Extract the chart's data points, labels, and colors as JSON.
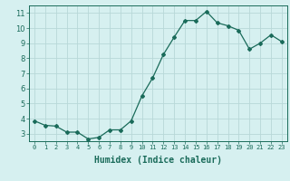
{
  "x": [
    0,
    1,
    2,
    3,
    4,
    5,
    6,
    7,
    8,
    9,
    10,
    11,
    12,
    13,
    14,
    15,
    16,
    17,
    18,
    19,
    20,
    21,
    22,
    23
  ],
  "y": [
    3.85,
    3.55,
    3.5,
    3.1,
    3.1,
    2.65,
    2.75,
    3.25,
    3.25,
    3.85,
    5.5,
    6.7,
    8.25,
    9.4,
    10.5,
    10.5,
    11.1,
    10.35,
    10.15,
    9.85,
    8.6,
    9.0,
    9.55,
    9.1
  ],
  "xlabel": "Humidex (Indice chaleur)",
  "ylabel_ticks": [
    3,
    4,
    5,
    6,
    7,
    8,
    9,
    10,
    11
  ],
  "xlim": [
    -0.5,
    23.5
  ],
  "ylim": [
    2.5,
    11.5
  ],
  "line_color": "#1a6b5a",
  "marker": "D",
  "marker_size": 2,
  "bg_color": "#d6f0f0",
  "grid_color": "#b8d8d8",
  "tick_color": "#1a6b5a",
  "label_color": "#1a6b5a",
  "xlabel_fontsize": 7,
  "xtick_fontsize": 5,
  "ytick_fontsize": 6
}
